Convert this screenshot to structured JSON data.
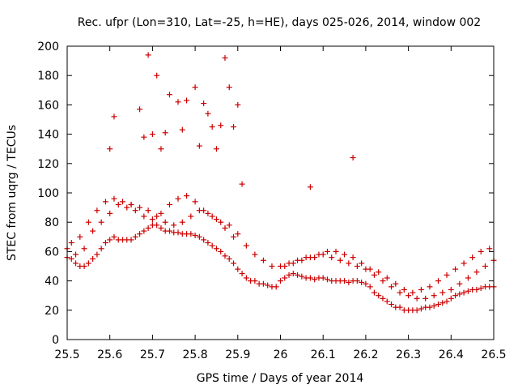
{
  "chart_data": {
    "type": "scatter",
    "title": "Rec. ufpr (Lon=310, Lat=-25, h=HE), days 025-026, 2014, window 002",
    "xlabel": "GPS time / Days of year 2014",
    "ylabel": "STEC from uqrg / TECUs",
    "xlim": [
      25.5,
      26.5
    ],
    "ylim": [
      0,
      200
    ],
    "xticks": [
      "25.5",
      "25.6",
      "25.7",
      "25.8",
      "25.9",
      "26",
      "26.1",
      "26.2",
      "26.3",
      "26.4",
      "26.5"
    ],
    "yticks": [
      "0",
      "20",
      "40",
      "60",
      "80",
      "100",
      "120",
      "140",
      "160",
      "180",
      "200"
    ],
    "grid": false,
    "legend": "none",
    "marker_color": "#cc0000",
    "series": [
      {
        "x": [
          25.5,
          25.51,
          25.52,
          25.53,
          25.54,
          25.55,
          25.56,
          25.57,
          25.58,
          25.59,
          25.6,
          25.61,
          25.62,
          25.63,
          25.64,
          25.65,
          25.66,
          25.67,
          25.68,
          25.69,
          25.7,
          25.71,
          25.72,
          25.73,
          25.74,
          25.75,
          25.76,
          25.77,
          25.78,
          25.79,
          25.8,
          25.81,
          25.82,
          25.83,
          25.84,
          25.85,
          25.86,
          25.87,
          25.88,
          25.89,
          25.9,
          25.91,
          25.92,
          25.93,
          25.94,
          25.95,
          25.96,
          25.97,
          25.98,
          25.99,
          26.0,
          26.01,
          26.02,
          26.03,
          26.04,
          26.05,
          26.06,
          26.07,
          26.08,
          26.09,
          26.1,
          26.11,
          26.12,
          26.13,
          26.14,
          26.15,
          26.16,
          26.17,
          26.18,
          26.19,
          26.2,
          26.21,
          26.22,
          26.23,
          26.24,
          26.25,
          26.26,
          26.27,
          26.28,
          26.29,
          26.3,
          26.31,
          26.32,
          26.33,
          26.34,
          26.35,
          26.36,
          26.37,
          26.38,
          26.39,
          26.4,
          26.41,
          26.42,
          26.43,
          26.44,
          26.45,
          26.46,
          26.47,
          26.48,
          26.49,
          26.5,
          25.5,
          25.52,
          25.54,
          25.56,
          25.58,
          25.6,
          25.62,
          25.64,
          25.66,
          25.68,
          25.7,
          25.72,
          25.74,
          25.76,
          25.78,
          25.8,
          25.82,
          25.84,
          25.86,
          25.88,
          25.9,
          25.92,
          25.94,
          25.96,
          25.98,
          26.0,
          26.02,
          26.04,
          26.06,
          26.08,
          26.1,
          26.12,
          26.14,
          26.16,
          26.18,
          26.2,
          26.22,
          26.24,
          26.26,
          26.28,
          26.3,
          26.32,
          26.34,
          26.36,
          26.38,
          26.4,
          26.42,
          26.44,
          26.46,
          26.48,
          26.5,
          25.51,
          25.53,
          25.55,
          25.57,
          25.59,
          25.61,
          25.63,
          25.65,
          25.67,
          25.69,
          25.71,
          25.73,
          25.75,
          25.77,
          25.79,
          25.81,
          25.83,
          25.85,
          25.87,
          25.89,
          26.01,
          26.03,
          26.05,
          26.07,
          26.09,
          26.11,
          26.13,
          26.15,
          26.17,
          26.19,
          26.21,
          26.23,
          26.25,
          26.27,
          26.29,
          26.31,
          26.33,
          26.35,
          26.37,
          26.39,
          26.41,
          26.43,
          26.45,
          26.47,
          26.49,
          25.6,
          25.61,
          25.67,
          25.68,
          25.69,
          25.7,
          25.71,
          25.73,
          25.74,
          25.77,
          25.78,
          25.8,
          25.81,
          25.82,
          25.83,
          25.85,
          25.86,
          25.87,
          25.88,
          25.89,
          25.9,
          25.91,
          25.65,
          25.72,
          25.76,
          25.84,
          26.07,
          26.17
        ],
        "y": [
          62,
          55,
          52,
          50,
          50,
          52,
          55,
          58,
          62,
          66,
          68,
          70,
          68,
          68,
          68,
          68,
          70,
          72,
          74,
          76,
          78,
          78,
          76,
          74,
          74,
          73,
          73,
          72,
          72,
          72,
          71,
          70,
          68,
          66,
          64,
          62,
          60,
          57,
          55,
          52,
          48,
          45,
          42,
          40,
          40,
          38,
          38,
          37,
          36,
          36,
          40,
          42,
          44,
          45,
          44,
          43,
          42,
          42,
          41,
          42,
          42,
          41,
          40,
          40,
          40,
          40,
          39,
          40,
          40,
          39,
          38,
          36,
          32,
          30,
          28,
          26,
          24,
          22,
          22,
          20,
          20,
          20,
          20,
          21,
          22,
          22,
          23,
          24,
          25,
          26,
          28,
          30,
          31,
          32,
          33,
          34,
          34,
          35,
          36,
          36,
          36,
          56,
          58,
          62,
          74,
          80,
          86,
          92,
          90,
          88,
          84,
          82,
          86,
          92,
          96,
          98,
          94,
          88,
          84,
          80,
          78,
          72,
          64,
          58,
          54,
          50,
          50,
          52,
          54,
          56,
          56,
          58,
          56,
          54,
          52,
          50,
          48,
          44,
          40,
          36,
          32,
          30,
          28,
          28,
          30,
          32,
          34,
          38,
          42,
          46,
          50,
          54,
          66,
          70,
          80,
          88,
          94,
          96,
          94,
          92,
          90,
          88,
          84,
          80,
          78,
          80,
          84,
          88,
          86,
          82,
          76,
          70,
          50,
          52,
          54,
          56,
          58,
          60,
          60,
          58,
          56,
          52,
          48,
          46,
          42,
          38,
          34,
          32,
          34,
          36,
          40,
          44,
          48,
          52,
          56,
          60,
          62,
          130,
          152,
          157,
          138,
          194,
          140,
          180,
          141,
          167,
          143,
          163,
          172,
          132,
          161,
          154,
          130,
          146,
          192,
          172,
          145,
          160,
          106,
          92,
          130,
          162,
          145,
          104,
          124
        ]
      }
    ]
  }
}
